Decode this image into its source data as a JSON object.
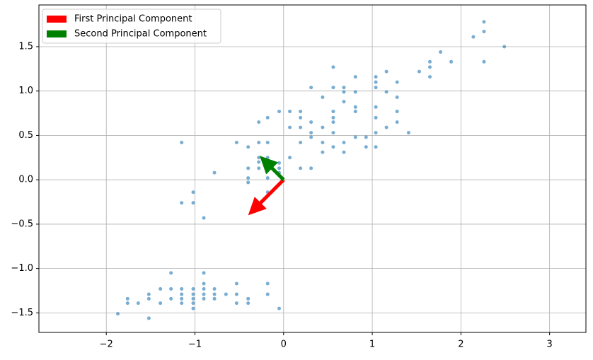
{
  "chart_data": {
    "type": "scatter",
    "x": [
      -1.87,
      -1.76,
      -1.76,
      -1.64,
      -1.52,
      -1.52,
      -1.52,
      -1.39,
      -1.39,
      -1.27,
      -1.27,
      -1.27,
      -1.15,
      -1.15,
      -1.15,
      -1.15,
      -1.02,
      -1.02,
      -1.02,
      -1.02,
      -1.02,
      -0.9,
      -0.9,
      -0.9,
      -0.9,
      -0.9,
      -0.78,
      -0.78,
      -0.78,
      -0.65,
      -0.53,
      -0.53,
      -0.53,
      -0.4,
      -0.4,
      -0.18,
      -0.18,
      -0.05,
      -1.15,
      -1.15,
      -1.02,
      -1.02,
      -0.9,
      -0.78,
      -0.53,
      -0.4,
      -0.4,
      -0.4,
      -0.4,
      -0.28,
      -0.28,
      -0.28,
      -0.28,
      -0.28,
      -0.18,
      -0.18,
      -0.18,
      -0.18,
      -0.18,
      -0.18,
      -0.05,
      -0.05,
      -0.05,
      -0.05,
      0.07,
      0.07,
      0.07,
      0.19,
      0.19,
      0.19,
      0.19,
      0.19,
      0.31,
      0.31,
      0.31,
      0.31,
      0.31,
      0.44,
      0.44,
      0.44,
      0.44,
      0.56,
      0.56,
      0.56,
      0.56,
      0.56,
      0.56,
      0.56,
      0.68,
      0.68,
      0.68,
      0.68,
      0.68,
      0.81,
      0.81,
      0.81,
      0.81,
      0.81,
      0.93,
      0.93,
      1.04,
      1.04,
      1.04,
      1.04,
      1.04,
      1.04,
      1.04,
      1.16,
      1.16,
      1.16,
      1.28,
      1.28,
      1.28,
      1.28,
      1.41,
      1.53,
      1.65,
      1.65,
      1.65,
      1.77,
      1.89,
      2.14,
      2.26,
      2.26,
      2.26,
      2.49
    ],
    "y": [
      -1.51,
      -1.34,
      -1.39,
      -1.39,
      -1.56,
      -1.34,
      -1.29,
      -1.23,
      -1.39,
      -1.05,
      -1.23,
      -1.34,
      -1.29,
      -1.23,
      -1.34,
      -1.39,
      -1.23,
      -1.29,
      -1.34,
      -1.39,
      -1.45,
      -1.05,
      -1.17,
      -1.23,
      -1.29,
      -1.34,
      -1.23,
      -1.29,
      -1.34,
      -1.29,
      -1.17,
      -1.29,
      -1.39,
      -1.34,
      -1.39,
      -1.17,
      -1.29,
      -1.45,
      0.42,
      -0.26,
      -0.14,
      -0.26,
      -0.43,
      0.08,
      0.42,
      0.37,
      0.13,
      0.02,
      -0.03,
      0.65,
      0.42,
      0.25,
      0.2,
      0.13,
      0.7,
      0.42,
      0.25,
      0.13,
      0.02,
      -0.14,
      0.77,
      0.19,
      0.13,
      0.08,
      0.77,
      0.59,
      0.25,
      0.77,
      0.7,
      0.59,
      0.42,
      0.13,
      1.04,
      0.65,
      0.53,
      0.48,
      0.13,
      0.93,
      0.59,
      0.42,
      0.31,
      1.27,
      1.04,
      0.77,
      0.7,
      0.65,
      0.53,
      0.37,
      1.04,
      0.99,
      0.88,
      0.42,
      0.31,
      1.16,
      0.99,
      0.82,
      0.77,
      0.48,
      0.48,
      0.37,
      1.16,
      1.1,
      1.04,
      0.82,
      0.7,
      0.53,
      0.37,
      1.22,
      0.99,
      0.59,
      1.1,
      0.93,
      0.77,
      0.65,
      0.53,
      1.22,
      1.33,
      1.27,
      1.16,
      1.44,
      1.33,
      1.61,
      1.78,
      1.67,
      1.33,
      1.5
    ],
    "color": "#1f77b4",
    "arrows": [
      {
        "name": "First Principal Component",
        "color": "#ff0000",
        "x": 0,
        "y": 0,
        "dx": -0.4,
        "dy": -0.4
      },
      {
        "name": "Second Principal Component",
        "color": "#008000",
        "x": 0,
        "y": 0,
        "dx": -0.27,
        "dy": 0.27
      }
    ],
    "xlim": [
      -2.76,
      3.41
    ],
    "ylim": [
      -1.72,
      1.97
    ],
    "xticks": [
      {
        "value": -2,
        "label": "−2"
      },
      {
        "value": -1,
        "label": "−1"
      },
      0,
      1,
      2,
      3
    ],
    "yticks": [
      {
        "value": -1.5,
        "label": "−1.5"
      },
      {
        "value": -1.0,
        "label": "−1.0"
      },
      {
        "value": -0.5,
        "label": "−0.5"
      },
      {
        "value": 0,
        "label": "0.0"
      },
      {
        "value": 0.5,
        "label": "0.5"
      },
      {
        "value": 1.0,
        "label": "1.0"
      },
      {
        "value": 1.5,
        "label": "1.5"
      }
    ],
    "grid": true,
    "legend": "upper left"
  }
}
